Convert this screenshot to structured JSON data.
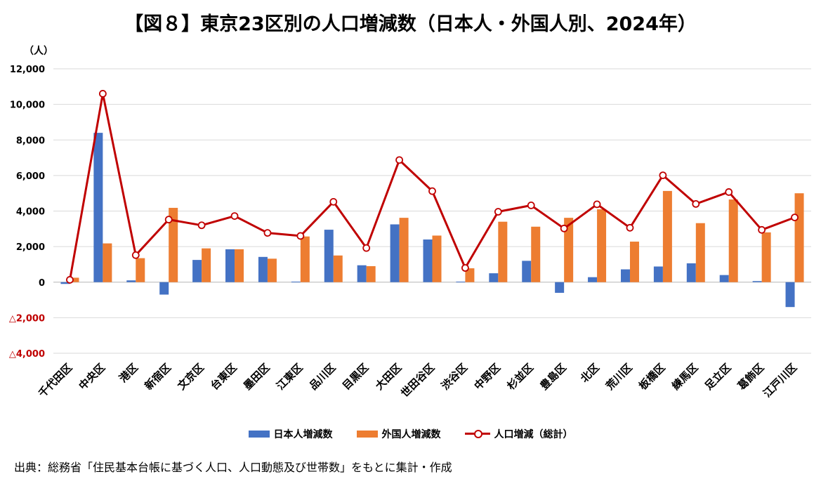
{
  "title": "【図８】東京23区別の人口増減数（日本人・外国人別、2024年）",
  "unit_label": "（人）",
  "source": "出典：総務省「住民基本台帳に基づく人口、人口動態及び世帯数」をもとに集計・作成",
  "colors": {
    "japanese": "#4472c4",
    "foreign": "#ed7d31",
    "total": "#c00000",
    "negative_tick": "#c00000",
    "grid": "#d9d9d9"
  },
  "legend": {
    "japanese": "日本人増減数",
    "foreign": "外国人増減数",
    "total": "人口増減（総計）"
  },
  "chart_data": {
    "type": "bar",
    "title": "【図８】東京23区別の人口増減数（日本人・外国人別、2024年）",
    "ylabel": "（人）",
    "ylim": [
      -4000,
      12000
    ],
    "yticks": [
      {
        "value": 12000,
        "label": "12,000"
      },
      {
        "value": 10000,
        "label": "10,000"
      },
      {
        "value": 8000,
        "label": "8,000"
      },
      {
        "value": 6000,
        "label": "6,000"
      },
      {
        "value": 4000,
        "label": "4,000"
      },
      {
        "value": 2000,
        "label": "2,000"
      },
      {
        "value": 0,
        "label": "0"
      },
      {
        "value": -2000,
        "label": "△2,000"
      },
      {
        "value": -4000,
        "label": "△4,000"
      }
    ],
    "grid": true,
    "legend_position": "bottom",
    "categories": [
      "千代田区",
      "中央区",
      "港区",
      "新宿区",
      "文京区",
      "台東区",
      "墨田区",
      "江東区",
      "品川区",
      "目黒区",
      "大田区",
      "世田谷区",
      "渋谷区",
      "中野区",
      "杉並区",
      "豊島区",
      "北区",
      "荒川区",
      "板橋区",
      "練馬区",
      "足立区",
      "葛飾区",
      "江戸川区"
    ],
    "series": [
      {
        "name": "日本人増減数",
        "kind": "bar",
        "values": [
          -100,
          8400,
          100,
          -700,
          1250,
          1850,
          1420,
          30,
          2950,
          950,
          3250,
          2400,
          30,
          500,
          1200,
          -600,
          280,
          720,
          880,
          1060,
          400,
          60,
          -1400
        ]
      },
      {
        "name": "外国人増減数",
        "kind": "bar",
        "values": [
          250,
          2180,
          1350,
          4180,
          1900,
          1850,
          1320,
          2570,
          1500,
          900,
          3620,
          2620,
          780,
          3400,
          3120,
          3620,
          4100,
          2280,
          5130,
          3320,
          4650,
          2800,
          5000
        ]
      },
      {
        "name": "人口増減（総計）",
        "kind": "line",
        "values": [
          130,
          10600,
          1520,
          3520,
          3200,
          3720,
          2770,
          2600,
          4520,
          1920,
          6870,
          5120,
          800,
          3960,
          4320,
          3020,
          4380,
          3060,
          6010,
          4400,
          5070,
          2940,
          3640
        ]
      }
    ]
  }
}
